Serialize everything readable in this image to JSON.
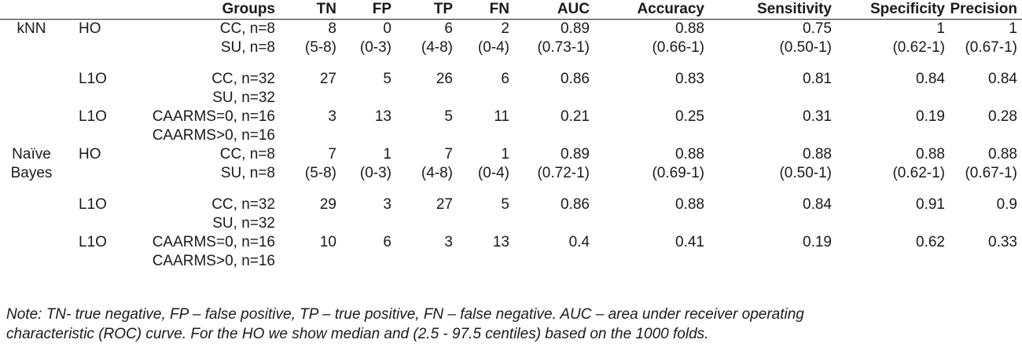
{
  "headers": {
    "model": "",
    "method": "",
    "groups": "Groups",
    "tn": "TN",
    "fp": "FP",
    "tp": "TP",
    "fn": "FN",
    "auc": "AUC",
    "accuracy": "Accuracy",
    "sensitivity": "Sensitivity",
    "specificity": "Specificity",
    "precision": "Precision"
  },
  "rows": [
    {
      "model": "kNN",
      "method": "HO",
      "groups": "CC, n=8",
      "tn": "8",
      "fp": "0",
      "tp": "6",
      "fn": "2",
      "auc": "0.89",
      "accuracy": "0.88",
      "sensitivity": "0.75",
      "specificity": "1",
      "precision": "1"
    },
    {
      "model": "",
      "method": "",
      "groups": "SU, n=8",
      "tn": "(5-8)",
      "fp": "(0-3)",
      "tp": "(4-8)",
      "fn": "(0-4)",
      "auc": "(0.73-1)",
      "accuracy": "(0.66-1)",
      "sensitivity": "(0.50-1)",
      "specificity": "(0.62-1)",
      "precision": "(0.67-1)"
    },
    {
      "gap": true
    },
    {
      "model": "",
      "method": "L1O",
      "groups": "CC, n=32",
      "tn": "27",
      "fp": "5",
      "tp": "26",
      "fn": "6",
      "auc": "0.86",
      "accuracy": "0.83",
      "sensitivity": "0.81",
      "specificity": "0.84",
      "precision": "0.84"
    },
    {
      "model": "",
      "method": "",
      "groups": "SU, n=32",
      "tn": "",
      "fp": "",
      "tp": "",
      "fn": "",
      "auc": "",
      "accuracy": "",
      "sensitivity": "",
      "specificity": "",
      "precision": ""
    },
    {
      "model": "",
      "method": "L1O",
      "groups": "CAARMS=0, n=16",
      "tn": "3",
      "fp": "13",
      "tp": "5",
      "fn": "11",
      "auc": "0.21",
      "accuracy": "0.25",
      "sensitivity": "0.31",
      "specificity": "0.19",
      "precision": "0.28"
    },
    {
      "model": "",
      "method": "",
      "groups": "CAARMS>0, n=16",
      "tn": "",
      "fp": "",
      "tp": "",
      "fn": "",
      "auc": "",
      "accuracy": "",
      "sensitivity": "",
      "specificity": "",
      "precision": ""
    },
    {
      "model": "Naïve",
      "method": "HO",
      "groups": "CC, n=8",
      "tn": "7",
      "fp": "1",
      "tp": "7",
      "fn": "1",
      "auc": "0.89",
      "accuracy": "0.88",
      "sensitivity": "0.88",
      "specificity": "0.88",
      "precision": "0.88"
    },
    {
      "model": "Bayes",
      "method": "",
      "groups": "SU, n=8",
      "tn": "(5-8)",
      "fp": "(0-3)",
      "tp": "(4-8)",
      "fn": "(0-4)",
      "auc": "(0.72-1)",
      "accuracy": "(0.69-1)",
      "sensitivity": "(0.50-1)",
      "specificity": "(0.62-1)",
      "precision": "(0.67-1)"
    },
    {
      "gap": true
    },
    {
      "model": "",
      "method": "L1O",
      "groups": "CC, n=32",
      "tn": "29",
      "fp": "3",
      "tp": "27",
      "fn": "5",
      "auc": "0.86",
      "accuracy": "0.88",
      "sensitivity": "0.84",
      "specificity": "0.91",
      "precision": "0.9"
    },
    {
      "model": "",
      "method": "",
      "groups": "SU, n=32",
      "tn": "",
      "fp": "",
      "tp": "",
      "fn": "",
      "auc": "",
      "accuracy": "",
      "sensitivity": "",
      "specificity": "",
      "precision": ""
    },
    {
      "model": "",
      "method": "L1O",
      "groups": "CAARMS=0, n=16",
      "tn": "10",
      "fp": "6",
      "tp": "3",
      "fn": "13",
      "auc": "0.4",
      "accuracy": "0.41",
      "sensitivity": "0.19",
      "specificity": "0.62",
      "precision": "0.33"
    },
    {
      "model": "",
      "method": "",
      "groups": "CAARMS>0, n=16",
      "tn": "",
      "fp": "",
      "tp": "",
      "fn": "",
      "auc": "",
      "accuracy": "",
      "sensitivity": "",
      "specificity": "",
      "precision": ""
    }
  ],
  "note": {
    "line1": "Note: TN- true negative, FP – false positive, TP – true positive, FN – false negative. AUC – area under receiver operating",
    "line2": "characteristic (ROC) curve. For the HO we show median and (2.5 - 97.5 centiles) based on the 1000 folds."
  }
}
